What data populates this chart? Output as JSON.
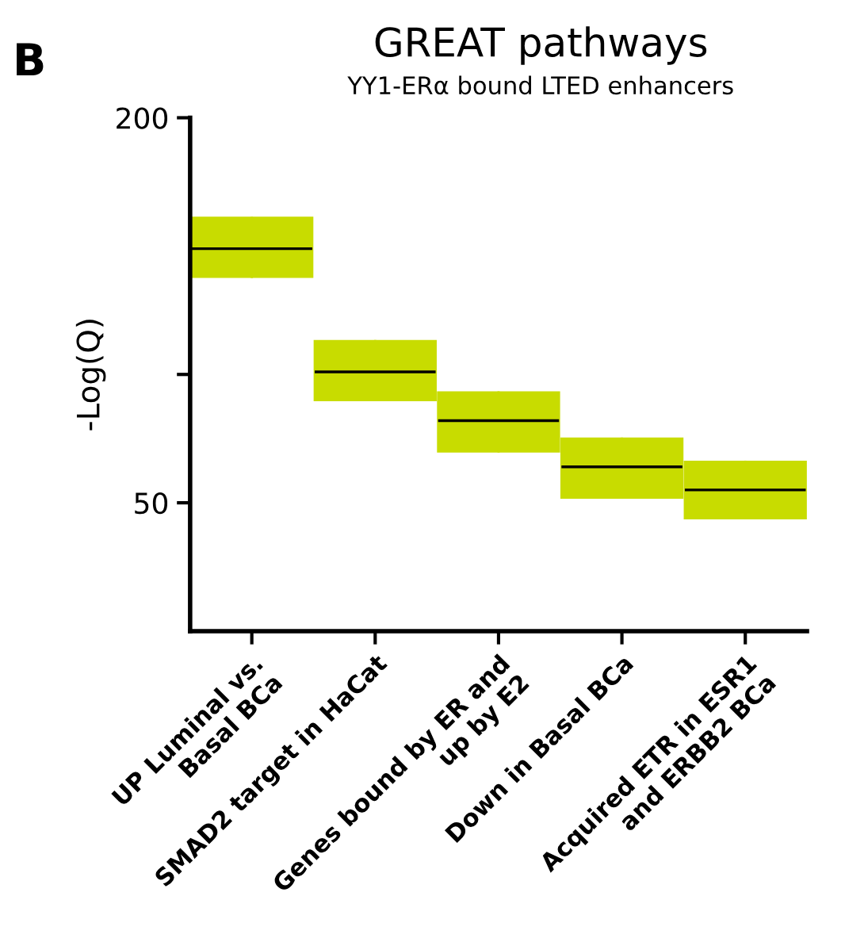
{
  "chart_data": {
    "type": "box",
    "title": "GREAT pathways",
    "subtitle": "YY1-ERα bound LTED enhancers",
    "ylabel": "-Log(Q)",
    "annotations": [
      "B"
    ],
    "categories": [
      "UP Luminal vs.\nBasal BCa",
      "SMAD2 target in HaCat",
      "Genes bound by ER and\nup by E2",
      "Down in Basal BCa",
      "Acquired ETR in ESR1\nand ERBB2 BCa"
    ],
    "boxes": [
      {
        "low": 138,
        "q1": 138,
        "median": 149,
        "q3": 161,
        "high": 161
      },
      {
        "low": 90,
        "q1": 90,
        "median": 101,
        "q3": 113,
        "high": 113
      },
      {
        "low": 70,
        "q1": 70,
        "median": 82,
        "q3": 93,
        "high": 93
      },
      {
        "low": 52,
        "q1": 52,
        "median": 64,
        "q3": 75,
        "high": 75
      },
      {
        "low": 44,
        "q1": 44,
        "median": 55,
        "q3": 66,
        "high": 66
      }
    ],
    "color": "#c8dc00",
    "ylim": [
      0,
      200
    ],
    "yticks": [
      {
        "value": 50,
        "label": "50"
      },
      {
        "value": 100,
        "label": null
      },
      {
        "value": 200,
        "label": "200"
      }
    ],
    "grid": false,
    "legend": false
  }
}
